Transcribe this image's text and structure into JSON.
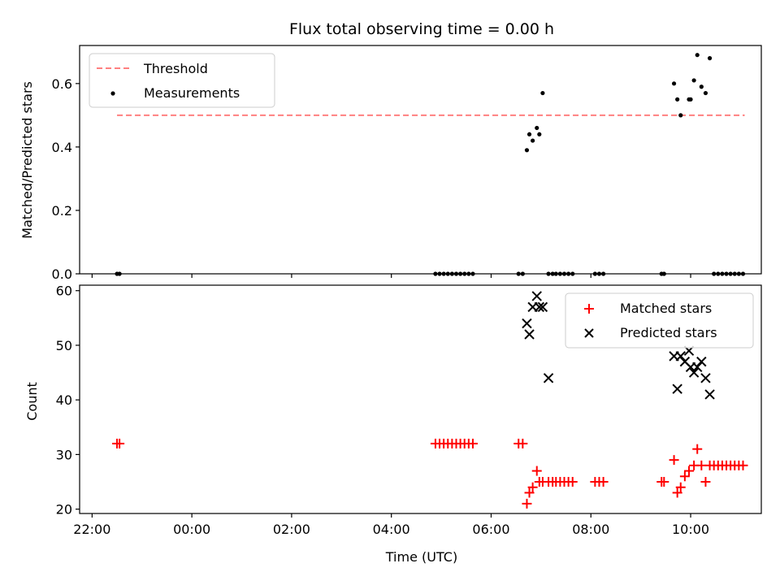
{
  "title": "Flux total observing time = 0.00 h",
  "chart_data": [
    {
      "panel": "top",
      "type": "scatter",
      "ylabel": "Matched/Predicted stars",
      "xlabel": "",
      "ylim": [
        0,
        0.72
      ],
      "yticks": [
        0.0,
        0.2,
        0.4,
        0.6
      ],
      "ytick_labels": [
        "0.0",
        "0.2",
        "0.4",
        "0.6"
      ],
      "legend_position": "upper-left",
      "threshold": {
        "name": "Threshold",
        "value": 0.5,
        "x_range": [
          "22:30",
          "11:05"
        ],
        "color": "#ff8080",
        "style": "dashed"
      },
      "series": [
        {
          "name": "Measurements",
          "color": "#000000",
          "marker": "dot",
          "x": [
            "22:30",
            "22:33",
            "04:53",
            "04:58",
            "05:03",
            "05:08",
            "05:13",
            "05:18",
            "05:23",
            "05:28",
            "05:33",
            "05:38",
            "06:33",
            "06:38",
            "06:43",
            "06:46",
            "06:50",
            "06:55",
            "06:58",
            "07:02",
            "07:09",
            "07:14",
            "07:18",
            "07:23",
            "07:28",
            "07:33",
            "07:38",
            "08:05",
            "08:10",
            "08:15",
            "09:25",
            "09:28",
            "09:40",
            "09:44",
            "09:48",
            "09:58",
            "10:00",
            "10:04",
            "10:08",
            "10:13",
            "10:18",
            "10:23",
            "10:28",
            "10:33",
            "10:38",
            "10:43",
            "10:48",
            "10:53",
            "10:58",
            "11:03"
          ],
          "y": [
            0,
            0,
            0,
            0,
            0,
            0,
            0,
            0,
            0,
            0,
            0,
            0,
            0,
            0,
            0.39,
            0.44,
            0.42,
            0.46,
            0.44,
            0.57,
            0,
            0,
            0,
            0,
            0,
            0,
            0,
            0,
            0,
            0,
            0,
            0,
            0.6,
            0.55,
            0.5,
            0.55,
            0.55,
            0.61,
            0.69,
            0.59,
            0.57,
            0.68,
            0,
            0,
            0,
            0,
            0,
            0,
            0,
            0
          ]
        }
      ]
    },
    {
      "panel": "bottom",
      "type": "scatter",
      "ylabel": "Count",
      "xlabel": "Time (UTC)",
      "ylim": [
        19.2,
        61
      ],
      "yticks": [
        20,
        30,
        40,
        50,
        60
      ],
      "ytick_labels": [
        "20",
        "30",
        "40",
        "50",
        "60"
      ],
      "xlim": [
        "21:45",
        "11:25"
      ],
      "xticks": [
        "22:00",
        "00:00",
        "02:00",
        "04:00",
        "06:00",
        "08:00",
        "10:00"
      ],
      "xtick_labels": [
        "22:00",
        "00:00",
        "02:00",
        "04:00",
        "06:00",
        "08:00",
        "10:00"
      ],
      "legend_position": "upper-right",
      "series": [
        {
          "name": "Matched stars",
          "color": "#ff0000",
          "marker": "plus",
          "x": [
            "22:30",
            "22:33",
            "04:53",
            "04:58",
            "05:03",
            "05:08",
            "05:13",
            "05:18",
            "05:23",
            "05:28",
            "05:33",
            "05:38",
            "06:33",
            "06:38",
            "06:43",
            "06:46",
            "06:50",
            "06:55",
            "06:58",
            "07:02",
            "07:09",
            "07:14",
            "07:18",
            "07:23",
            "07:28",
            "07:33",
            "07:38",
            "08:05",
            "08:10",
            "08:15",
            "09:25",
            "09:28",
            "09:40",
            "09:44",
            "09:48",
            "09:53",
            "09:58",
            "10:04",
            "10:08",
            "10:13",
            "10:18",
            "10:23",
            "10:28",
            "10:33",
            "10:38",
            "10:43",
            "10:48",
            "10:53",
            "10:58",
            "11:03"
          ],
          "y": [
            32,
            32,
            32,
            32,
            32,
            32,
            32,
            32,
            32,
            32,
            32,
            32,
            32,
            32,
            21,
            23,
            24,
            27,
            25,
            25,
            25,
            25,
            25,
            25,
            25,
            25,
            25,
            25,
            25,
            25,
            25,
            25,
            29,
            23,
            24,
            26,
            27,
            28,
            31,
            28,
            25,
            28,
            28,
            28,
            28,
            28,
            28,
            28,
            28,
            28
          ]
        },
        {
          "name": "Predicted stars",
          "color": "#000000",
          "marker": "x",
          "x": [
            "06:43",
            "06:46",
            "06:50",
            "06:55",
            "06:58",
            "07:02",
            "07:09",
            "09:40",
            "09:44",
            "09:48",
            "09:53",
            "09:58",
            "10:00",
            "10:04",
            "10:08",
            "10:13",
            "10:18",
            "10:23"
          ],
          "y": [
            54,
            52,
            57,
            59,
            57,
            57,
            44,
            48,
            42,
            48,
            47,
            49,
            46,
            45,
            46,
            47,
            44,
            41
          ]
        }
      ]
    }
  ]
}
